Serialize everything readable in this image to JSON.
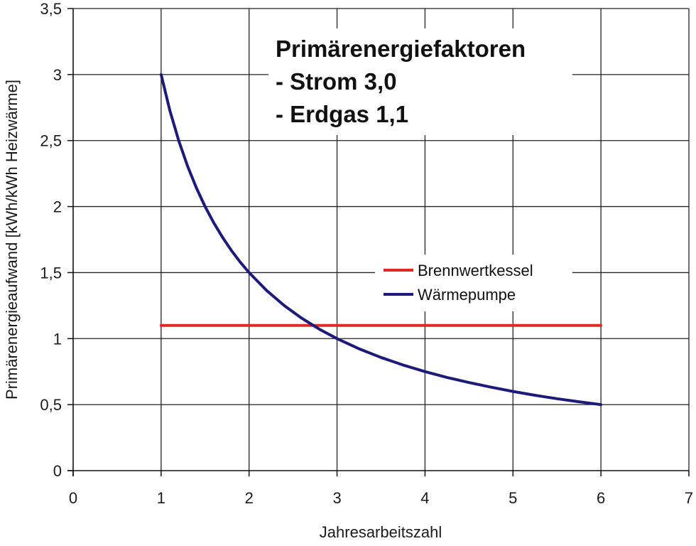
{
  "chart_data": {
    "type": "line",
    "title": "",
    "xlabel": "Jahresarbeitszahl",
    "ylabel": "Primärenergieaufwand [kWh/kWh Heizwärme]",
    "xlim": [
      0,
      7
    ],
    "ylim": [
      0,
      3.5
    ],
    "x_ticks": [
      0,
      1,
      2,
      3,
      4,
      5,
      6,
      7
    ],
    "y_ticks": [
      0,
      0.5,
      1,
      1.5,
      2,
      2.5,
      3,
      3.5
    ],
    "x_tick_labels": [
      "0",
      "1",
      "2",
      "3",
      "4",
      "5",
      "6",
      "7"
    ],
    "y_tick_labels": [
      "0",
      "0,5",
      "1",
      "1,5",
      "2",
      "2,5",
      "3",
      "3,5"
    ],
    "grid": true,
    "legend_position": "center-right",
    "series": [
      {
        "name": "Brennwertkessel",
        "color": "#e02828",
        "x": [
          1,
          6
        ],
        "y": [
          1.1,
          1.1
        ]
      },
      {
        "name": "Wärmepumpe",
        "color": "#1e1a78",
        "x": [
          1.0,
          1.1,
          1.2,
          1.3,
          1.4,
          1.5,
          1.6,
          1.7,
          1.8,
          1.9,
          2.0,
          2.2,
          2.4,
          2.6,
          2.8,
          3.0,
          3.25,
          3.5,
          3.75,
          4.0,
          4.25,
          4.5,
          4.75,
          5.0,
          5.25,
          5.5,
          5.75,
          6.0
        ],
        "y": [
          3.0,
          2.727,
          2.5,
          2.308,
          2.143,
          2.0,
          1.875,
          1.765,
          1.667,
          1.579,
          1.5,
          1.364,
          1.25,
          1.154,
          1.071,
          1.0,
          0.923,
          0.857,
          0.8,
          0.75,
          0.706,
          0.667,
          0.632,
          0.6,
          0.571,
          0.545,
          0.522,
          0.5
        ]
      }
    ],
    "annotations": [
      "Primärenergiefaktoren",
      "- Strom 3,0",
      "- Erdgas 1,1"
    ]
  }
}
